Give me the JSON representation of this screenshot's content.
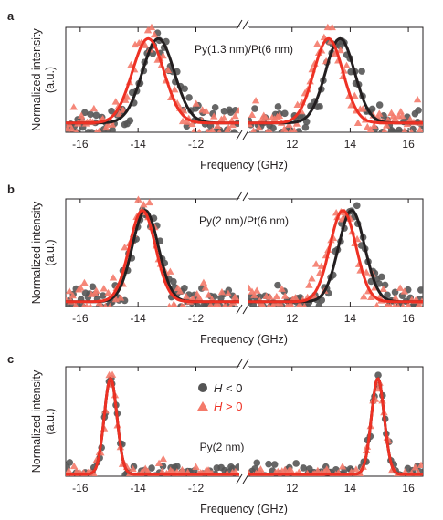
{
  "figure": {
    "colors": {
      "h_neg_points": "#555555",
      "h_pos_points": "#f47a6a",
      "h_neg_fit": "#231f20",
      "h_pos_fit": "#ee3124",
      "axis": "#231f20"
    }
  },
  "chart_data": [
    {
      "panel": "a",
      "type": "scatter",
      "annotation": "Py(1.3 nm)/Pt(6 nm)",
      "xlabel": "Frequency (GHz)",
      "ylabel": "Normalized intensity",
      "ylabel_unit": "(a.u.)",
      "x_axis_break": "//",
      "xlim_left": [
        -16.5,
        -10.5
      ],
      "xlim_right": [
        10.5,
        16.5
      ],
      "xticks_left": [
        "-16",
        "-14",
        "-12"
      ],
      "xticks_right": [
        "12",
        "14",
        "16"
      ],
      "ylim": [
        0,
        1.12
      ],
      "series": [
        {
          "name": "H < 0",
          "symbol": "circle",
          "peaks": [
            {
              "center": -13.3,
              "width": 0.55,
              "amplitude": 1.0,
              "baseline": 0.1
            },
            {
              "center": 13.65,
              "width": 0.5,
              "amplitude": 1.0,
              "baseline": 0.1
            }
          ]
        },
        {
          "name": "H > 0",
          "symbol": "triangle",
          "peaks": [
            {
              "center": -13.65,
              "width": 0.55,
              "amplitude": 1.0,
              "baseline": 0.1
            },
            {
              "center": 13.25,
              "width": 0.5,
              "amplitude": 1.0,
              "baseline": 0.1
            }
          ]
        }
      ]
    },
    {
      "panel": "b",
      "type": "scatter",
      "annotation": "Py(2 nm)/Pt(6 nm)",
      "xlabel": "Frequency (GHz)",
      "ylabel": "Normalized intensity",
      "ylabel_unit": "(a.u.)",
      "x_axis_break": "//",
      "xlim_left": [
        -16.5,
        -10.5
      ],
      "xlim_right": [
        10.5,
        16.5
      ],
      "xticks_left": [
        "-16",
        "-14",
        "-12"
      ],
      "xticks_right": [
        "12",
        "14",
        "16"
      ],
      "ylim": [
        0,
        1.12
      ],
      "series": [
        {
          "name": "H < 0",
          "symbol": "circle",
          "peaks": [
            {
              "center": -13.75,
              "width": 0.45,
              "amplitude": 1.0,
              "baseline": 0.05
            },
            {
              "center": 14.05,
              "width": 0.45,
              "amplitude": 1.0,
              "baseline": 0.05
            }
          ]
        },
        {
          "name": "H > 0",
          "symbol": "triangle",
          "peaks": [
            {
              "center": -13.85,
              "width": 0.45,
              "amplitude": 1.0,
              "baseline": 0.05
            },
            {
              "center": 13.75,
              "width": 0.45,
              "amplitude": 1.0,
              "baseline": 0.05
            }
          ]
        }
      ]
    },
    {
      "panel": "c",
      "type": "scatter",
      "annotation": "Py(2 nm)",
      "xlabel": "Frequency (GHz)",
      "ylabel": "Normalized intensity",
      "ylabel_unit": "(a.u.)",
      "x_axis_break": "//",
      "xlim_left": [
        -16.5,
        -10.5
      ],
      "xlim_right": [
        10.5,
        16.5
      ],
      "xticks_left": [
        "-16",
        "-14",
        "-12"
      ],
      "xticks_right": [
        "12",
        "14",
        "16"
      ],
      "ylim": [
        0,
        1.12
      ],
      "legend": {
        "placement": "top-right of left half",
        "entries": [
          {
            "symbol_text": "H",
            "relation": " < 0",
            "marker": "circle"
          },
          {
            "symbol_text": "H",
            "relation": " > 0",
            "marker": "triangle"
          }
        ]
      },
      "series": [
        {
          "name": "H < 0",
          "symbol": "circle",
          "peaks": [
            {
              "center": -14.95,
              "width": 0.22,
              "amplitude": 1.0,
              "baseline": 0.02
            },
            {
              "center": 14.95,
              "width": 0.22,
              "amplitude": 1.0,
              "baseline": 0.02
            }
          ]
        },
        {
          "name": "H > 0",
          "symbol": "triangle",
          "peaks": [
            {
              "center": -14.95,
              "width": 0.22,
              "amplitude": 1.0,
              "baseline": 0.02
            },
            {
              "center": 14.95,
              "width": 0.22,
              "amplitude": 1.0,
              "baseline": 0.02
            }
          ]
        }
      ]
    }
  ]
}
